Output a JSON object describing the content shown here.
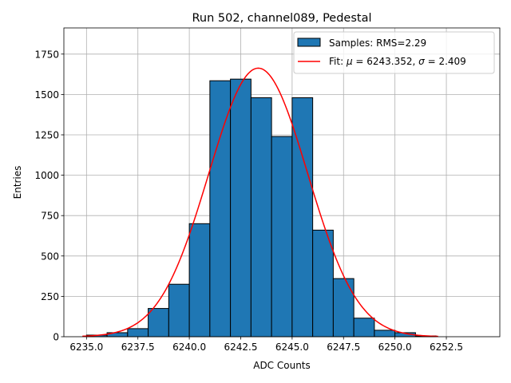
{
  "chart_data": {
    "type": "bar",
    "title": "Run 502, channel089, Pedestal",
    "xlabel": "ADC Counts",
    "ylabel": "Entries",
    "xlim": [
      6233.9,
      6255.1
    ],
    "ylim": [
      0,
      1912
    ],
    "x_ticks": [
      6235.0,
      6237.5,
      6240.0,
      6242.5,
      6245.0,
      6247.5,
      6250.0,
      6252.5
    ],
    "x_tick_labels": [
      "6235.0",
      "6237.5",
      "6240.0",
      "6242.5",
      "6245.0",
      "6247.5",
      "6250.0",
      "6252.5"
    ],
    "y_ticks": [
      0,
      250,
      500,
      750,
      1000,
      1250,
      1500,
      1750
    ],
    "y_tick_labels": [
      "0",
      "250",
      "500",
      "750",
      "1000",
      "1250",
      "1500",
      "1750"
    ],
    "grid": true,
    "bar_color": "#1f77b4",
    "fit_color": "#ff0000",
    "histogram": {
      "name": "Samples: RMS=2.29",
      "bin_width": 1,
      "bin_starts": [
        6235,
        6236,
        6237,
        6238,
        6239,
        6240,
        6241,
        6242,
        6243,
        6244,
        6245,
        6246,
        6247,
        6248,
        6249,
        6250,
        6251
      ],
      "values": [
        10,
        25,
        50,
        175,
        325,
        700,
        1585,
        1595,
        1480,
        1240,
        1480,
        660,
        360,
        115,
        40,
        25,
        5
      ]
    },
    "fit": {
      "name_prefix": "Fit: ",
      "mu_symbol": "μ",
      "sigma_symbol": "σ",
      "mu": 6243.352,
      "sigma": 2.409,
      "mu_text": " = 6243.352, ",
      "sigma_text": " = 2.409",
      "amplitude": 1663,
      "x_range": [
        6234.8,
        6252.1
      ]
    },
    "legend_position": "top-right"
  }
}
